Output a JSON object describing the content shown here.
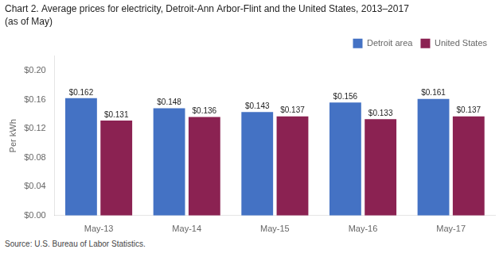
{
  "chart_data": {
    "type": "bar",
    "title": "Chart 2. Average prices for electricity, Detroit-Ann Arbor-Flint and the United States, 2013–2017",
    "subtitle": "(as of May)",
    "ylabel": "Per kWh",
    "source": "Source: U.S. Bureau of Labor Statistics.",
    "categories": [
      "May-13",
      "May-14",
      "May-15",
      "May-16",
      "May-17"
    ],
    "series": [
      {
        "name": "Detroit area",
        "color": "#4472C4",
        "values": [
          0.162,
          0.148,
          0.143,
          0.156,
          0.161
        ],
        "value_labels": [
          "$0.162",
          "$0.148",
          "$0.143",
          "$0.156",
          "$0.161"
        ]
      },
      {
        "name": "United States",
        "color": "#8B2252",
        "values": [
          0.131,
          0.136,
          0.137,
          0.133,
          0.137
        ],
        "value_labels": [
          "$0.131",
          "$0.136",
          "$0.137",
          "$0.133",
          "$0.137"
        ]
      }
    ],
    "ylim": [
      0,
      0.22
    ],
    "yticks": [
      {
        "value": 0.0,
        "label": "$0.00"
      },
      {
        "value": 0.04,
        "label": "$0.04"
      },
      {
        "value": 0.08,
        "label": "$0.08"
      },
      {
        "value": 0.12,
        "label": "$0.12"
      },
      {
        "value": 0.16,
        "label": "$0.16"
      },
      {
        "value": 0.2,
        "label": "$0.20"
      }
    ],
    "data_labels": true,
    "legend": "upper right",
    "grid": false
  }
}
